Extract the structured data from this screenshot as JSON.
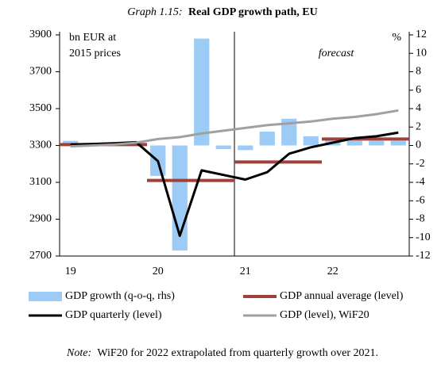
{
  "chart_data": {
    "type": "combo",
    "title_prefix": "Graph 1.15:",
    "title": "Real GDP growth path, EU",
    "y_label": [
      "bn EUR at",
      "2015 prices"
    ],
    "y2_label": "%",
    "annotation": "forecast",
    "note_prefix": "Note:",
    "note": "WiF20 for 2022 extrapolated from quarterly growth over 2021.",
    "categories": [
      "19",
      null,
      null,
      null,
      "20",
      null,
      null,
      null,
      "21",
      null,
      null,
      null,
      "22",
      null,
      null,
      null
    ],
    "ylim": [
      2700,
      3900
    ],
    "yticks": [
      2700,
      2900,
      3100,
      3300,
      3500,
      3700,
      3900
    ],
    "y2lim": [
      -12,
      12
    ],
    "y2ticks": [
      -12,
      -10,
      -8,
      -6,
      -4,
      -2,
      0,
      2,
      4,
      6,
      8,
      10,
      12
    ],
    "series": [
      {
        "name": "GDP growth (q-o-q, rhs)",
        "type": "bar",
        "axis": "y2",
        "color": "#9ccbf5",
        "values": [
          0.5,
          0.2,
          0.3,
          0.1,
          -3.3,
          -11.4,
          11.6,
          -0.4,
          -0.5,
          1.5,
          2.9,
          1.0,
          0.6,
          0.5,
          0.5,
          0.5
        ]
      },
      {
        "name": "GDP annual average (level)",
        "type": "step",
        "color": "#a0403a",
        "values": [
          3305,
          3305,
          3305,
          3305,
          3110,
          3110,
          3110,
          3110,
          3210,
          3210,
          3210,
          3210,
          3335,
          3335,
          3335,
          3335
        ]
      },
      {
        "name": "GDP quarterly (level)",
        "type": "line",
        "color": "#000000",
        "values": [
          3305,
          3308,
          3312,
          3318,
          3215,
          2810,
          3165,
          3140,
          3115,
          3155,
          3255,
          3290,
          3315,
          3340,
          3350,
          3370
        ]
      },
      {
        "name": "GDP (level), WiF20",
        "type": "line",
        "color": "#a0a0a0",
        "values": [
          3295,
          3300,
          3305,
          3315,
          3335,
          3345,
          3365,
          3380,
          3395,
          3410,
          3420,
          3430,
          3445,
          3455,
          3470,
          3490
        ]
      }
    ]
  }
}
